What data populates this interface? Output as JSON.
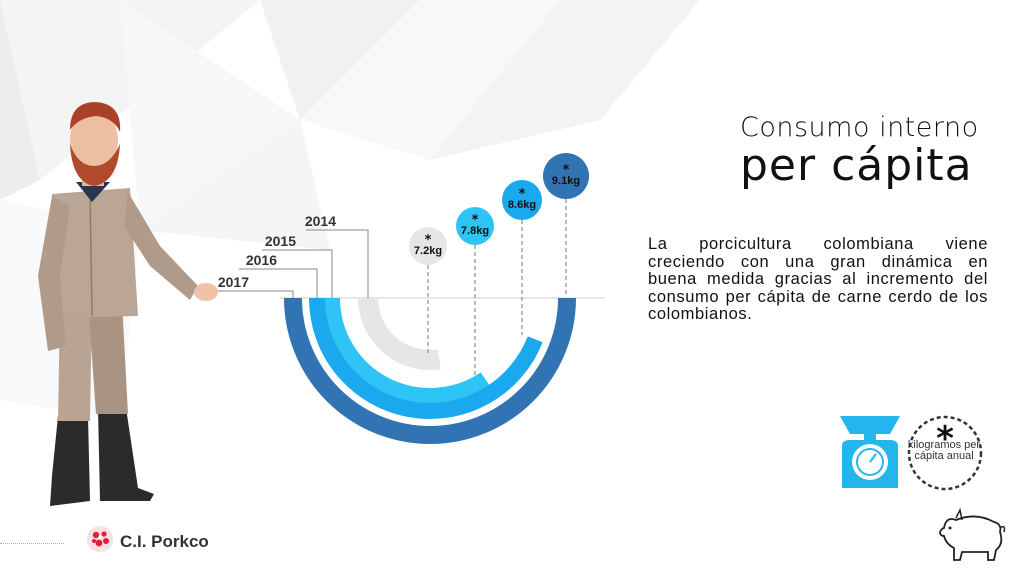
{
  "slide": {
    "title_line1": "Consumo interno",
    "title_line2": "per cápita",
    "description": "La porcicultura colombiana viene creciendo con una gran dinámica en buena medida gracias al incremento del consumo per cápita de carne cerdo de los colombianos.",
    "brand": "C.I. Porkco",
    "legend_symbol": "*",
    "legend_text": "kilogramos per cápita anual",
    "icons": [
      "scale-icon",
      "pig-icon",
      "asterisk-icon",
      "porkco-logo-icon"
    ]
  },
  "chart_data": {
    "type": "radial-bar",
    "categories": [
      "2014",
      "2015",
      "2016",
      "2017"
    ],
    "values": [
      7.2,
      7.8,
      8.6,
      9.1
    ],
    "labels": [
      "7.2kg",
      "7.8kg",
      "8.6kg",
      "9.1kg"
    ],
    "marker": "*",
    "unit": "kg",
    "colors": [
      "#e6e6e6",
      "#2ec4f5",
      "#1aa8ee",
      "#3274b3"
    ]
  }
}
